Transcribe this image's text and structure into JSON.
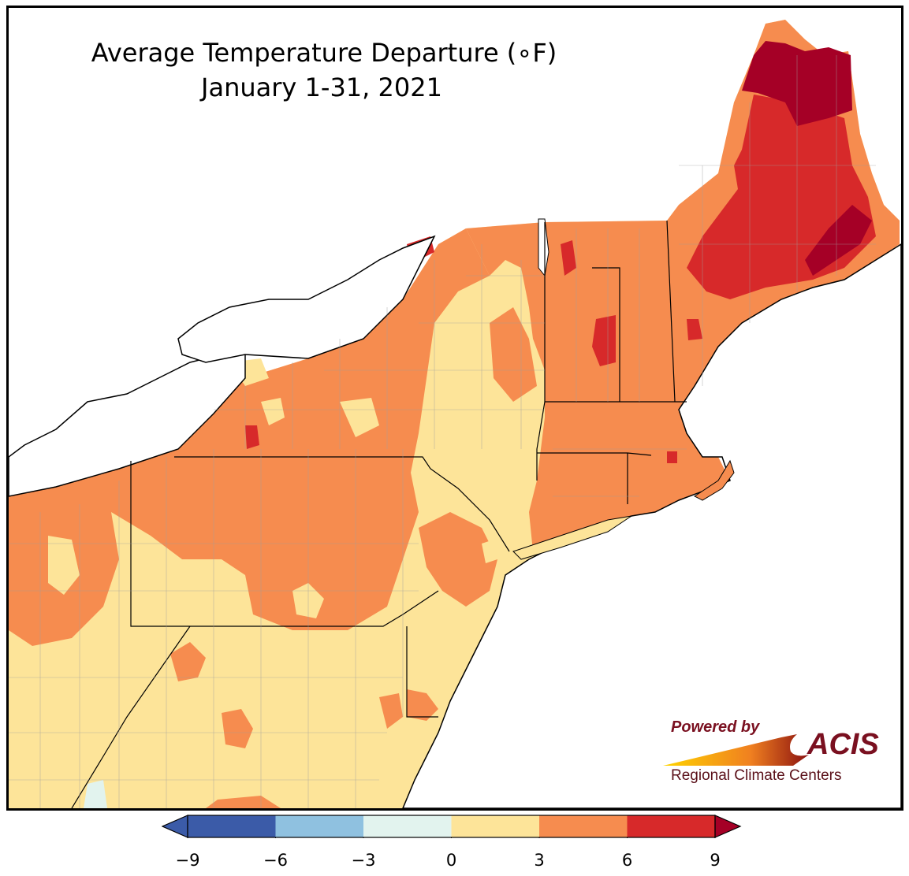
{
  "title": {
    "line1": "Average Temperature Departure (∘F)",
    "line2": "January 1-31, 2021"
  },
  "logo": {
    "powered_by": "Powered by",
    "acis": "ACIS",
    "regional": "Regional Climate Centers"
  },
  "colors": {
    "band_neg9_neg6": "#3b5ba8",
    "band_neg6_neg3": "#8fc1e0",
    "band_neg3_0": "#e2f3ee",
    "band_0_3": "#fde499",
    "band_3_6": "#f68c4f",
    "band_6_9": "#d7292a",
    "band_above_9": "#a50026",
    "water": "#ffffff",
    "borders": "#000000",
    "county_lines": "#9e9e9e"
  },
  "legend": {
    "ticks": [
      "−9",
      "−6",
      "−3",
      "0",
      "3",
      "6",
      "9"
    ],
    "bands": [
      {
        "from": -9,
        "to": -6,
        "color": "#3b5ba8"
      },
      {
        "from": -6,
        "to": -3,
        "color": "#8fc1e0"
      },
      {
        "from": -3,
        "to": 0,
        "color": "#e2f3ee"
      },
      {
        "from": 0,
        "to": 3,
        "color": "#fde499"
      },
      {
        "from": 3,
        "to": 6,
        "color": "#f68c4f"
      },
      {
        "from": 6,
        "to": 9,
        "color": "#d7292a"
      }
    ],
    "extend_low_color": "#3b5ba8",
    "extend_high_color": "#a50026"
  }
}
